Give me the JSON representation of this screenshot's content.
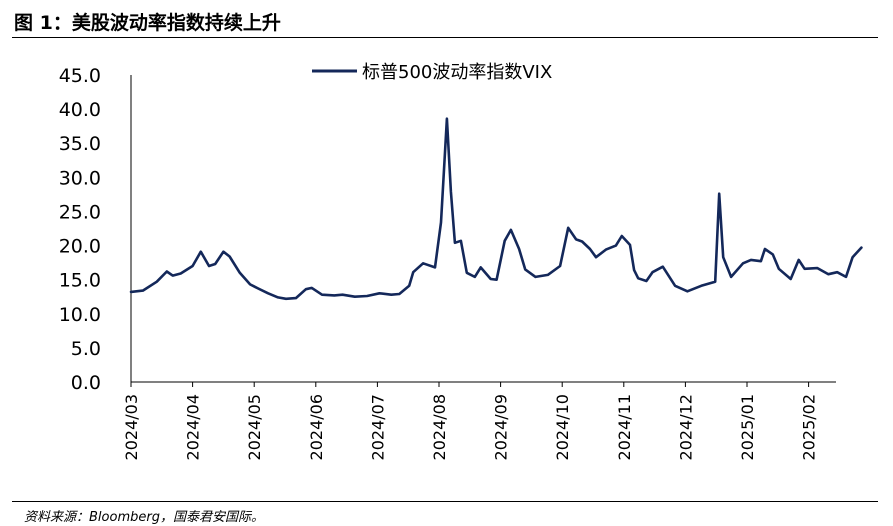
{
  "figure": {
    "title": "图 1：美股波动率指数持续上升",
    "source": "资料来源：Bloomberg，国泰君安国际。"
  },
  "colors": {
    "series": "#14285a",
    "axis": "#000000"
  },
  "chart_data": {
    "type": "line",
    "title": "",
    "xlabel": "",
    "ylabel": "",
    "ylim": [
      0,
      45
    ],
    "yticks": [
      "0.0",
      "5.0",
      "10.0",
      "15.0",
      "20.0",
      "25.0",
      "30.0",
      "35.0",
      "40.0",
      "45.0"
    ],
    "xticks": [
      "2024/03",
      "2024/04",
      "2024/05",
      "2024/06",
      "2024/07",
      "2024/08",
      "2024/09",
      "2024/10",
      "2024/11",
      "2024/12",
      "2025/01",
      "2025/02"
    ],
    "grid": false,
    "legend_position": "top-center",
    "series": [
      {
        "name": "标普500波动率指数VIX",
        "x": [
          "2024-03-01",
          "2024-03-07",
          "2024-03-14",
          "2024-03-19",
          "2024-03-22",
          "2024-03-26",
          "2024-04-01",
          "2024-04-05",
          "2024-04-09",
          "2024-04-12",
          "2024-04-16",
          "2024-04-19",
          "2024-04-24",
          "2024-04-29",
          "2024-05-03",
          "2024-05-08",
          "2024-05-13",
          "2024-05-17",
          "2024-05-22",
          "2024-05-27",
          "2024-05-30",
          "2024-06-04",
          "2024-06-10",
          "2024-06-14",
          "2024-06-20",
          "2024-06-26",
          "2024-07-02",
          "2024-07-08",
          "2024-07-12",
          "2024-07-17",
          "2024-07-19",
          "2024-07-24",
          "2024-07-26",
          "2024-07-30",
          "2024-08-02",
          "2024-08-05",
          "2024-08-07",
          "2024-08-09",
          "2024-08-12",
          "2024-08-15",
          "2024-08-19",
          "2024-08-22",
          "2024-08-27",
          "2024-08-30",
          "2024-09-03",
          "2024-09-06",
          "2024-09-10",
          "2024-09-13",
          "2024-09-18",
          "2024-09-24",
          "2024-09-30",
          "2024-10-04",
          "2024-10-08",
          "2024-10-11",
          "2024-10-15",
          "2024-10-18",
          "2024-10-23",
          "2024-10-28",
          "2024-10-31",
          "2024-11-04",
          "2024-11-06",
          "2024-11-08",
          "2024-11-12",
          "2024-11-15",
          "2024-11-20",
          "2024-11-26",
          "2024-12-02",
          "2024-12-09",
          "2024-12-16",
          "2024-12-18",
          "2024-12-20",
          "2024-12-24",
          "2024-12-30",
          "2025-01-03",
          "2025-01-08",
          "2025-01-10",
          "2025-01-14",
          "2025-01-17",
          "2025-01-23",
          "2025-01-27",
          "2025-01-30",
          "2025-02-05",
          "2025-02-10",
          "2025-02-14",
          "2025-02-18",
          "2025-02-21",
          "2025-02-25"
        ],
        "values": [
          13.2,
          13.4,
          14.7,
          16.2,
          15.6,
          15.9,
          17.0,
          19.1,
          17.0,
          17.3,
          19.1,
          18.4,
          16.0,
          14.3,
          13.7,
          13.0,
          12.4,
          12.2,
          12.3,
          13.6,
          13.8,
          12.8,
          12.7,
          12.8,
          12.5,
          12.6,
          13.0,
          12.8,
          12.9,
          14.1,
          16.1,
          17.4,
          17.2,
          16.8,
          23.4,
          38.6,
          27.9,
          20.4,
          20.7,
          16.0,
          15.4,
          16.8,
          15.1,
          15.0,
          20.7,
          22.3,
          19.5,
          16.5,
          15.4,
          15.7,
          17.0,
          22.6,
          20.9,
          20.6,
          19.5,
          18.3,
          19.4,
          20.0,
          21.4,
          20.1,
          16.4,
          15.2,
          14.8,
          16.1,
          16.9,
          14.1,
          13.3,
          14.1,
          14.7,
          27.6,
          18.3,
          15.4,
          17.4,
          17.9,
          17.7,
          19.5,
          18.7,
          16.6,
          15.1,
          17.9,
          16.6,
          16.7,
          15.8,
          16.1,
          15.4,
          18.3,
          19.7
        ]
      }
    ]
  }
}
